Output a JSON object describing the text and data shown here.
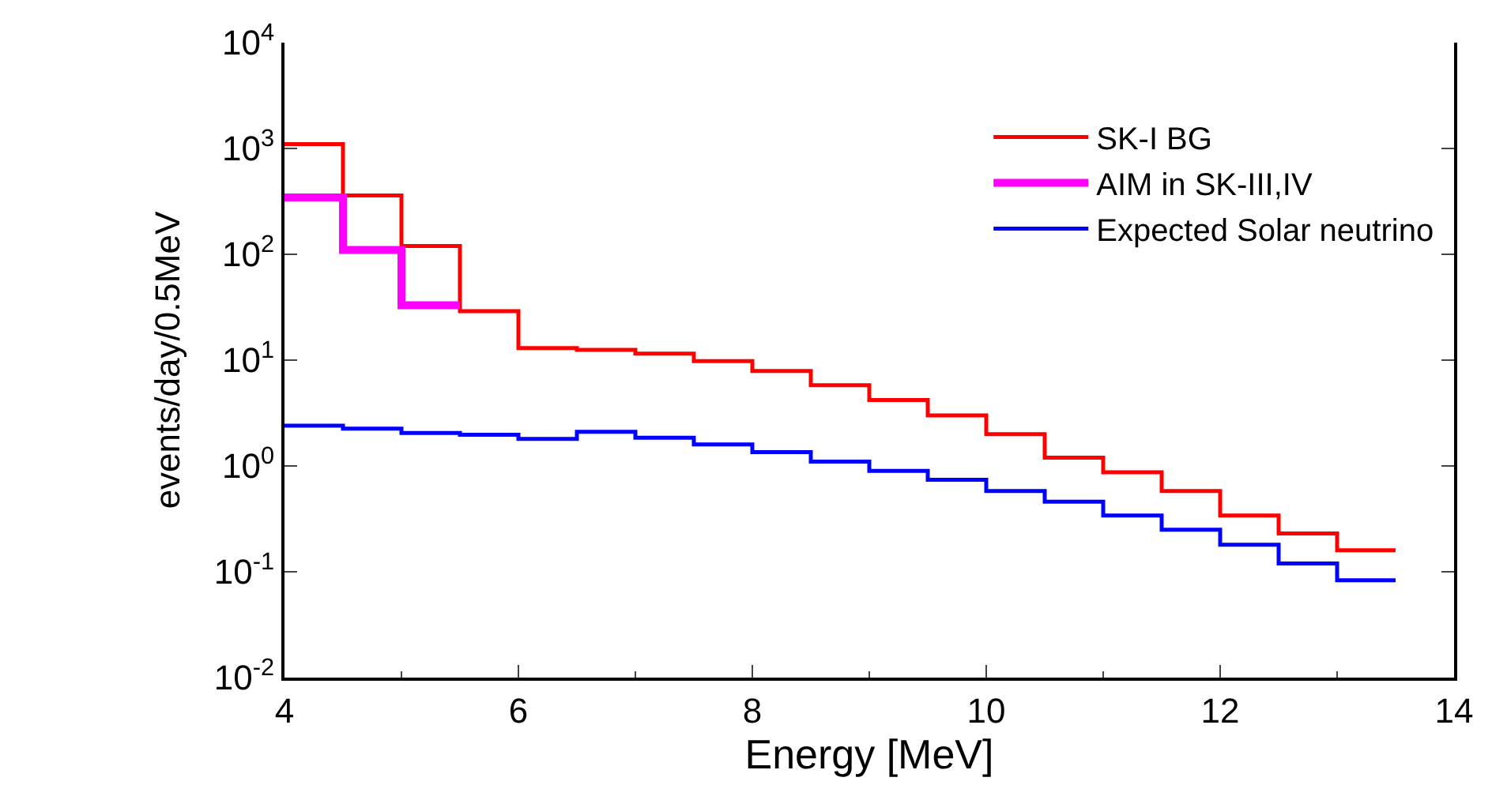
{
  "chart_data": {
    "type": "histogram",
    "xlabel": "Energy [MeV]",
    "ylabel": "events/day/0.5MeV",
    "bins": [
      4,
      4.5,
      5,
      5.5,
      6,
      6.5,
      7,
      7.5,
      8,
      8.5,
      9,
      9.5,
      10,
      10.5,
      11,
      11.5,
      12,
      12.5,
      13,
      13.5
    ],
    "series": [
      {
        "name": "SK-I BG",
        "color": "#ff0000",
        "values": [
          1100,
          360,
          120,
          29,
          13,
          12.5,
          11.5,
          9.8,
          7.9,
          5.8,
          4.2,
          3.0,
          2.0,
          1.2,
          0.87,
          0.58,
          0.34,
          0.23,
          0.16
        ]
      },
      {
        "name": "AIM in SK-III,IV",
        "color": "#ff00ff",
        "bins": [
          4,
          4.5,
          5,
          5.5
        ],
        "values": [
          345,
          110,
          33
        ]
      },
      {
        "name": "Expected Solar neutrino",
        "color": "#0000ff",
        "values": [
          2.4,
          2.25,
          2.05,
          1.97,
          1.8,
          2.1,
          1.85,
          1.6,
          1.35,
          1.1,
          0.9,
          0.74,
          0.58,
          0.46,
          0.34,
          0.25,
          0.18,
          0.12,
          0.083
        ]
      }
    ],
    "log": true,
    "xlim": [
      4,
      14
    ],
    "xticks": [
      4,
      6,
      8,
      10,
      12,
      14
    ],
    "ylim": [
      0.01,
      10000
    ],
    "yticks": [
      {
        "value": 0.01,
        "label": "10$^{-2}$"
      },
      {
        "value": 0.1,
        "label": "10$^{-1}$"
      },
      {
        "value": 1,
        "label": "10$^{0}$"
      },
      {
        "value": 10,
        "label": "10$^{1}$"
      },
      {
        "value": 100,
        "label": "10$^{2}$"
      },
      {
        "value": 1000,
        "label": "10$^{3}$"
      },
      {
        "value": 10000,
        "label": "10$^{4}$"
      }
    ],
    "legend": "top right"
  }
}
